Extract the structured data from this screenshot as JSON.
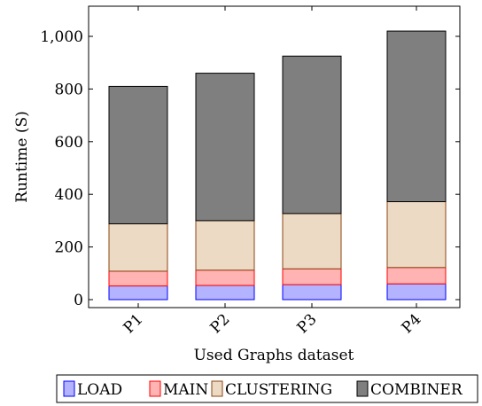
{
  "chart_data": {
    "type": "bar",
    "stacked": true,
    "categories": [
      "P1",
      "P2",
      "P3",
      "P4"
    ],
    "series": [
      {
        "name": "LOAD",
        "values": [
          52,
          54,
          57,
          60
        ],
        "fill": "#b3b3ff",
        "stroke": "#0000ff"
      },
      {
        "name": "MAIN",
        "values": [
          56,
          58,
          60,
          62
        ],
        "fill": "#ffb3b3",
        "stroke": "#ff0000"
      },
      {
        "name": "CLUSTERING",
        "values": [
          180,
          188,
          210,
          250
        ],
        "fill": "#ecdac4",
        "stroke": "#8b4513"
      },
      {
        "name": "COMBINER",
        "values": [
          522,
          560,
          598,
          648
        ],
        "fill": "#7f7f7f",
        "stroke": "#000000"
      }
    ],
    "yticks": [
      0,
      200,
      400,
      600,
      800,
      1000
    ],
    "ytick_labels": [
      "0",
      "200",
      "400",
      "600",
      "800",
      "1,000"
    ],
    "xlabel": "Used Graphs dataset",
    "ylabel": "Runtime (S)",
    "ylim": [
      -20,
      1120
    ],
    "legend": "bottom-center",
    "grid": false
  }
}
